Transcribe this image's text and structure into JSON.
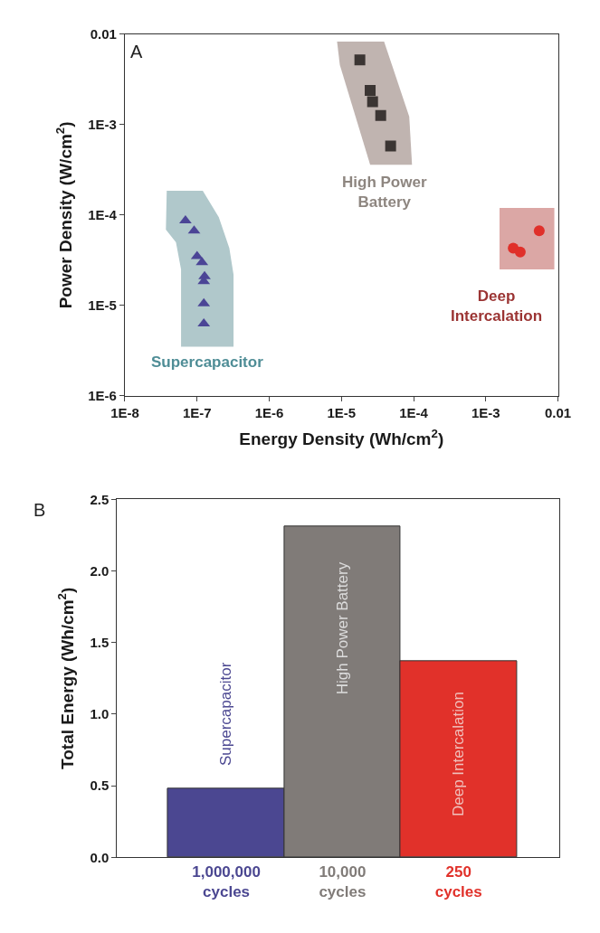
{
  "chart_data": [
    {
      "type": "scatter",
      "xlabel": "Energy Density (Wh/cm$^{2}$)",
      "ylabel": "Power Density (W/cm$^{2}$)",
      "log": "xy",
      "xlim": [
        1e-08,
        0.01
      ],
      "ylim": [
        1e-06,
        0.01
      ],
      "xticks": [
        {
          "value": 1e-08,
          "label": "1E-8"
        },
        {
          "value": 1e-07,
          "label": "1E-7"
        },
        {
          "value": 1e-06,
          "label": "1E-6"
        },
        {
          "value": 1e-05,
          "label": "1E-5"
        },
        {
          "value": 0.0001,
          "label": "1E-4"
        },
        {
          "value": 0.001,
          "label": "1E-3"
        },
        0.01
      ],
      "yticks": [
        {
          "value": 1e-06,
          "label": "1E-6"
        },
        {
          "value": 1e-05,
          "label": "1E-5"
        },
        {
          "value": 0.0001,
          "label": "1E-4"
        },
        {
          "value": 0.001,
          "label": "1E-3"
        },
        0.01
      ],
      "series": [
        {
          "type": "area",
          "color": "#b0c8cb",
          "x": [
            3.8e-08,
            1.2e-07,
            2e-07,
            2.8e-07,
            3.2e-07,
            3.2e-07,
            6e-08,
            6e-08,
            5.1e-08,
            3.7e-08
          ],
          "values": [
            0.000186,
            0.000186,
            9.5e-05,
            4.3e-05,
            2.2e-05,
            3.5e-06,
            3.5e-06,
            2.5e-05,
            5e-05,
            6.9e-05
          ]
        },
        {
          "type": "area",
          "color": "#c0b4b0",
          "x": [
            8.7e-06,
            3.9e-05,
            8.7e-05,
            9.5e-05,
            2.5e-05,
            9.5e-06
          ],
          "values": [
            0.0083,
            0.0083,
            0.00123,
            0.00036,
            0.00036,
            0.0046
          ]
        },
        {
          "type": "area",
          "color": "#dba7a5",
          "x": [
            0.00155,
            0.0089,
            0.0089,
            0.00155
          ],
          "values": [
            0.00012,
            0.00012,
            2.5e-05,
            2.5e-05
          ]
        },
        {
          "type": "scatter",
          "marker": "triangle",
          "color": "#4b4596",
          "x": [
            6.9e-08,
            9.1e-08,
            1e-07,
            1.17e-07,
            1.27e-07,
            1.24e-07,
            1.24e-07,
            1.24e-07
          ],
          "values": [
            8.7e-05,
            6.7e-05,
            3.5e-05,
            3e-05,
            2.1e-05,
            1.85e-05,
            1.05e-05,
            6.3e-06
          ]
        },
        {
          "type": "scatter",
          "marker": "square",
          "color": "#3b3533",
          "x": [
            1.8e-05,
            2.5e-05,
            2.7e-05,
            3.5e-05,
            4.8e-05
          ],
          "values": [
            0.0052,
            0.0024,
            0.0018,
            0.00126,
            0.00058
          ]
        },
        {
          "type": "scatter",
          "marker": "circle",
          "color": "#e0302a",
          "x": [
            0.0055,
            0.0024,
            0.003
          ],
          "values": [
            6.7e-05,
            4.3e-05,
            3.9e-05
          ]
        }
      ],
      "annotations": [
        "A",
        "Supercapacitor",
        "High Power\nBattery",
        "Deep\nIntercalation"
      ]
    },
    {
      "type": "bar",
      "ylabel": "Total Energy (Wh/cm$^{2}$)",
      "categories": [
        "1,000,000\ncycles",
        "10,000\ncycles",
        "250\ncycles"
      ],
      "values": [
        0.48,
        2.31,
        1.37
      ],
      "colors": [
        "#4b4791",
        "#807b78",
        "#e1312a"
      ],
      "ylim": [
        0,
        2.5
      ],
      "yticks": [
        {
          "value": 0,
          "label": "0.0"
        },
        0.5,
        {
          "value": 1,
          "label": "1.0"
        },
        1.5,
        {
          "value": 2,
          "label": "2.0"
        },
        2.5
      ],
      "annotations": [
        "B",
        "Supercapacitor",
        "High Power Battery",
        "Deep Intercalation"
      ]
    }
  ]
}
